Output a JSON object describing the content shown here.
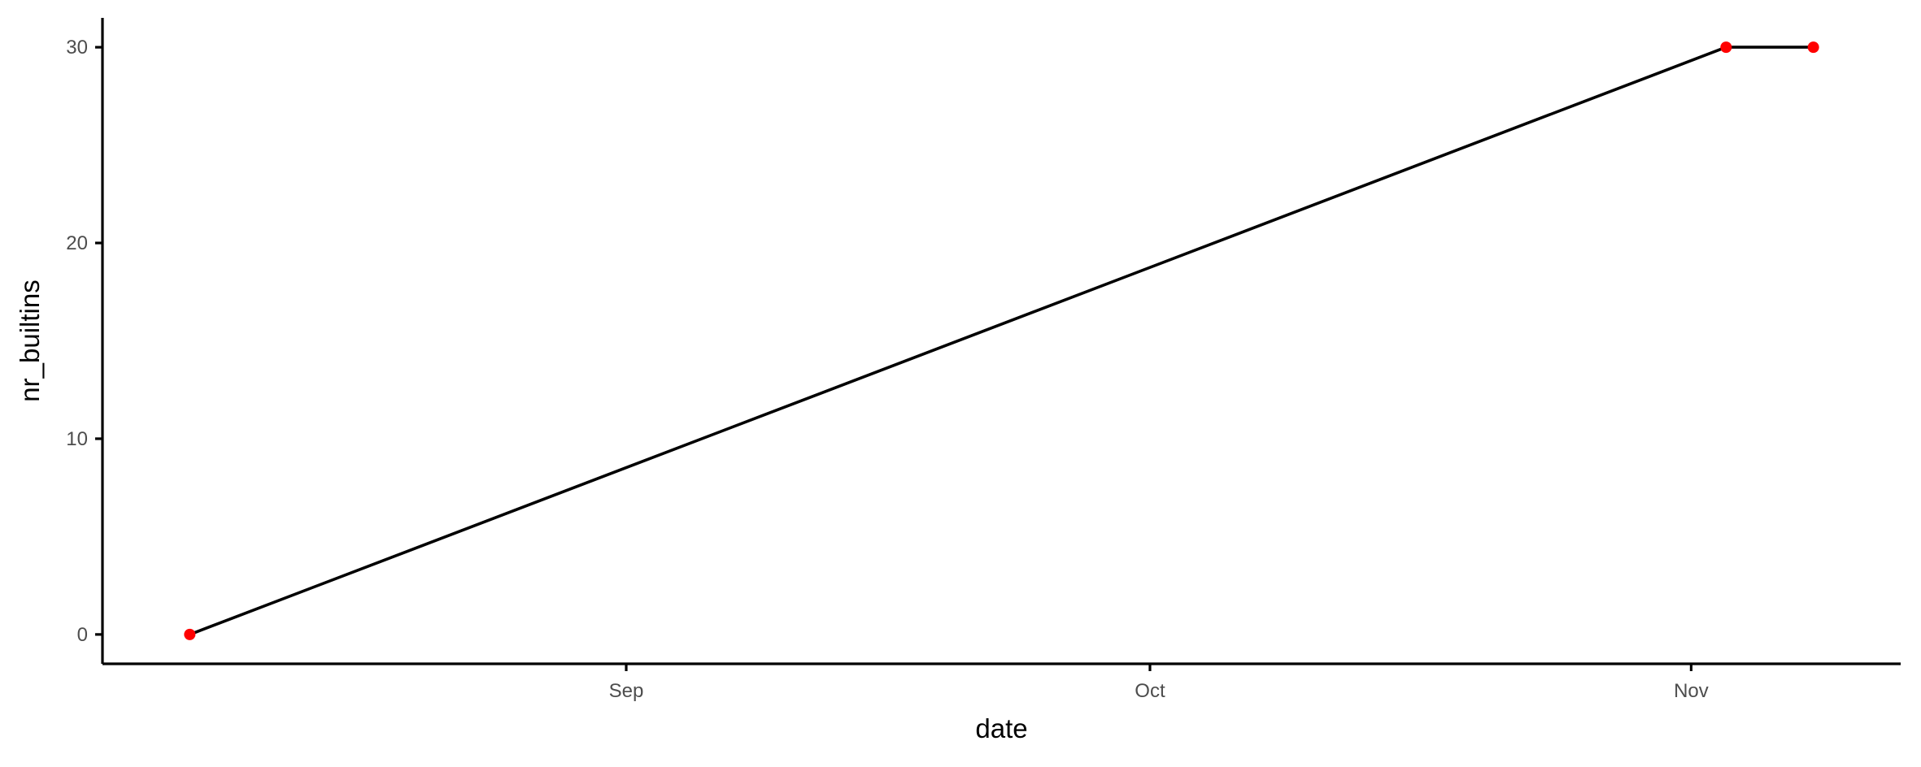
{
  "chart_data": {
    "type": "line",
    "title": "",
    "xlabel": "date",
    "ylabel": "nr_builtins",
    "x_tick_labels": [
      "Sep",
      "Oct",
      "Nov"
    ],
    "x_ticks": [
      "2023-09-01",
      "2023-10-01",
      "2023-11-01"
    ],
    "y_tick_labels": [
      "0",
      "10",
      "20",
      "30"
    ],
    "y_ticks": [
      0,
      10,
      20,
      30
    ],
    "xlim": [
      "2023-08-02",
      "2023-11-13"
    ],
    "ylim": [
      -1.5,
      31.5
    ],
    "grid": false,
    "legend": "none",
    "series": [
      {
        "points": [
          {
            "x": "2023-08-07",
            "y": 0
          },
          {
            "x": "2023-11-03",
            "y": 30
          },
          {
            "x": "2023-11-08",
            "y": 30
          }
        ],
        "line_color": "#000000",
        "point_color": "#ff0000"
      }
    ]
  }
}
